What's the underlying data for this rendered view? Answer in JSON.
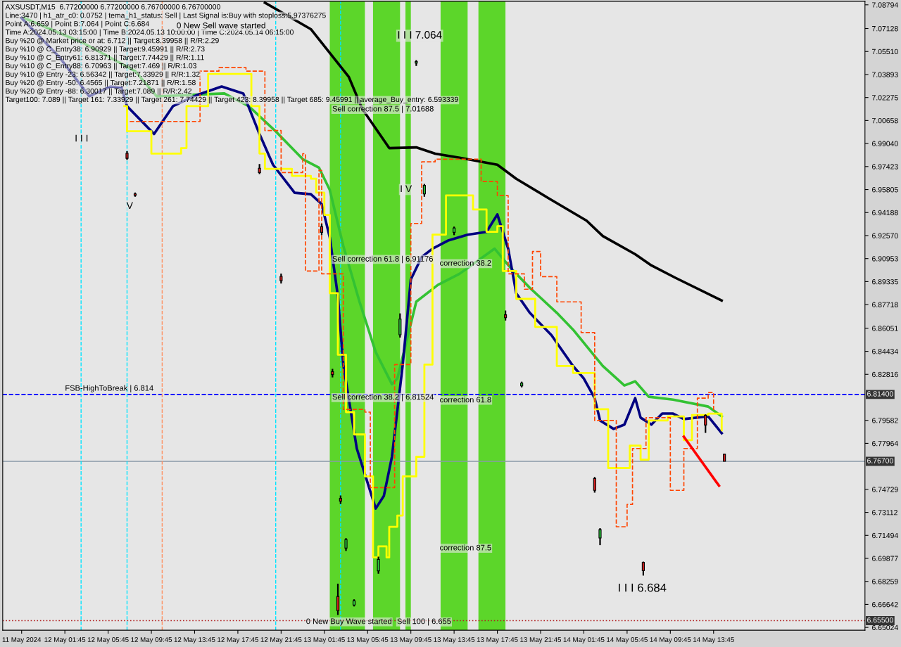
{
  "chart_data": {
    "type": "line",
    "title": "AXSUSDT,M15  6.77200000 6.77200000 6.76700000 6.76700000",
    "xlim": [
      "2024-05-11T20:00",
      "2024-05-15T03:45"
    ],
    "xticks": [
      {
        "value": "2024-05-11T21:45",
        "label": "11 May 2024"
      },
      {
        "value": "2024-05-12T01:45",
        "label": "12 May 01:45"
      },
      {
        "value": "2024-05-12T05:45",
        "label": "12 May 05:45"
      },
      {
        "value": "2024-05-12T09:45",
        "label": "12 May 09:45"
      },
      {
        "value": "2024-05-12T13:45",
        "label": "12 May 13:45"
      },
      {
        "value": "2024-05-12T17:45",
        "label": "12 May 17:45"
      },
      {
        "value": "2024-05-12T21:45",
        "label": "12 May 21:45"
      },
      {
        "value": "2024-05-13T01:45",
        "label": "13 May 01:45"
      },
      {
        "value": "2024-05-13T05:45",
        "label": "13 May 05:45"
      },
      {
        "value": "2024-05-13T09:45",
        "label": "13 May 09:45"
      },
      {
        "value": "2024-05-13T13:45",
        "label": "13 May 13:45"
      },
      {
        "value": "2024-05-13T17:45",
        "label": "13 May 17:45"
      },
      {
        "value": "2024-05-13T21:45",
        "label": "13 May 21:45"
      },
      {
        "value": "2024-05-14T01:45",
        "label": "14 May 01:45"
      },
      {
        "value": "2024-05-14T05:45",
        "label": "14 May 05:45"
      },
      {
        "value": "2024-05-14T09:45",
        "label": "14 May 09:45"
      },
      {
        "value": "2024-05-14T13:45",
        "label": "14 May 13:45"
      }
    ],
    "ylim": [
      6.6483,
      7.0904
    ],
    "yticks": [
      {
        "value": 7.08794,
        "label": "7.08794"
      },
      {
        "value": 7.07128,
        "label": "7.07128"
      },
      {
        "value": 7.0551,
        "label": "7.05510"
      },
      {
        "value": 7.03893,
        "label": "7.03893"
      },
      {
        "value": 7.02275,
        "label": "7.02275"
      },
      {
        "value": 7.00658,
        "label": "7.00658"
      },
      {
        "value": 6.9904,
        "label": "6.99040"
      },
      {
        "value": 6.97423,
        "label": "6.97423"
      },
      {
        "value": 6.95805,
        "label": "6.95805"
      },
      {
        "value": 6.94188,
        "label": "6.94188"
      },
      {
        "value": 6.9257,
        "label": "6.92570"
      },
      {
        "value": 6.90953,
        "label": "6.90953"
      },
      {
        "value": 6.89335,
        "label": "6.89335"
      },
      {
        "value": 6.87718,
        "label": "6.87718"
      },
      {
        "value": 6.86051,
        "label": "6.86051"
      },
      {
        "value": 6.84434,
        "label": "6.84434"
      },
      {
        "value": 6.82816,
        "label": "6.82816"
      },
      {
        "value": 6.79582,
        "label": "6.79582"
      },
      {
        "value": 6.77964,
        "label": "6.77964"
      },
      {
        "value": 6.74729,
        "label": "6.74729"
      },
      {
        "value": 6.73112,
        "label": "6.73112"
      },
      {
        "value": 6.71494,
        "label": "6.71494"
      },
      {
        "value": 6.69877,
        "label": "6.69877"
      },
      {
        "value": 6.68259,
        "label": "6.68259"
      },
      {
        "value": 6.66642,
        "label": "6.66642"
      },
      {
        "value": 6.65024,
        "label": "6.65024"
      }
    ],
    "grid": false,
    "legend": false,
    "series": [
      {
        "color": "#000000",
        "x": [
          "2024-05-12T20:15",
          "2024-05-13T00:30",
          "2024-05-13T04:00",
          "2024-05-13T05:15",
          "2024-05-13T07:45",
          "2024-05-13T10:15",
          "2024-05-13T12:00",
          "2024-05-13T14:15",
          "2024-05-13T17:45",
          "2024-05-13T19:30",
          "2024-05-13T22:30",
          "2024-05-14T02:00",
          "2024-05-14T03:30",
          "2024-05-14T06:30",
          "2024-05-14T08:00",
          "2024-05-14T10:15",
          "2024-05-14T14:30"
        ],
        "values": [
          7.0894,
          7.0708,
          7.0374,
          7.0148,
          6.9872,
          6.9877,
          6.9833,
          6.9804,
          6.9755,
          6.9656,
          6.9519,
          6.9362,
          6.9254,
          6.9126,
          6.9047,
          6.8959,
          6.8801
        ]
      },
      {
        "color": "#33c233",
        "x": [
          "2024-05-11T22:00",
          "2024-05-12T03:30",
          "2024-05-12T08:15",
          "2024-05-12T10:15",
          "2024-05-12T16:30",
          "2024-05-12T18:45",
          "2024-05-12T21:15",
          "2024-05-12T23:45",
          "2024-05-13T01:15",
          "2024-05-13T02:15",
          "2024-05-13T03:30",
          "2024-05-13T05:00",
          "2024-05-13T06:30",
          "2024-05-13T08:00",
          "2024-05-13T08:30",
          "2024-05-13T10:15",
          "2024-05-13T12:15",
          "2024-05-13T14:15",
          "2024-05-13T17:30",
          "2024-05-13T19:00",
          "2024-05-13T20:45",
          "2024-05-13T23:15",
          "2024-05-14T00:45",
          "2024-05-14T03:30",
          "2024-05-14T05:30",
          "2024-05-14T06:30",
          "2024-05-14T07:45",
          "2024-05-14T10:00",
          "2024-05-14T13:15",
          "2024-05-14T14:30"
        ],
        "values": [
          7.0786,
          7.0609,
          7.0413,
          7.0236,
          7.0256,
          7.0167,
          6.999,
          6.9794,
          6.9735,
          6.9578,
          6.9185,
          6.8792,
          6.8438,
          6.8212,
          6.8252,
          6.8792,
          6.891,
          6.8988,
          6.9165,
          6.9028,
          6.889,
          6.8714,
          6.8596,
          6.834,
          6.8203,
          6.8232,
          6.8124,
          6.8104,
          6.8055,
          6.7986
        ]
      },
      {
        "color": "#000080",
        "x": [
          "2024-05-11T21:45",
          "2024-05-12T01:15",
          "2024-05-12T04:00",
          "2024-05-12T06:00",
          "2024-05-12T07:00",
          "2024-05-12T07:30",
          "2024-05-12T10:00",
          "2024-05-12T11:45",
          "2024-05-12T14:00",
          "2024-05-12T16:15",
          "2024-05-12T18:15",
          "2024-05-12T19:45",
          "2024-05-12T21:00",
          "2024-05-12T23:00",
          "2024-05-13T00:30",
          "2024-05-13T01:30",
          "2024-05-13T02:15",
          "2024-05-13T03:00",
          "2024-05-13T03:30",
          "2024-05-13T04:45",
          "2024-05-13T06:30",
          "2024-05-13T07:15",
          "2024-05-13T08:00",
          "2024-05-13T09:00",
          "2024-05-13T09:45",
          "2024-05-13T10:45",
          "2024-05-13T11:45",
          "2024-05-13T13:15",
          "2024-05-13T15:00",
          "2024-05-13T16:45",
          "2024-05-13T17:45",
          "2024-05-13T18:45",
          "2024-05-13T19:30",
          "2024-05-13T20:45",
          "2024-05-13T22:45",
          "2024-05-14T00:45",
          "2024-05-14T01:45",
          "2024-05-14T02:45",
          "2024-05-14T03:15",
          "2024-05-14T04:30",
          "2024-05-14T05:30",
          "2024-05-14T06:30",
          "2024-05-14T07:00",
          "2024-05-14T08:00",
          "2024-05-14T09:00",
          "2024-05-14T10:00",
          "2024-05-14T11:00",
          "2024-05-14T13:15",
          "2024-05-14T14:30"
        ],
        "values": [
          7.0786,
          7.0511,
          7.0236,
          7.0305,
          7.0295,
          7.0167,
          6.9971,
          7.0167,
          7.0246,
          7.0305,
          7.0256,
          6.9971,
          6.9755,
          6.9558,
          6.9548,
          6.9479,
          6.9244,
          6.8831,
          6.835,
          6.776,
          6.7338,
          6.7426,
          6.7702,
          6.835,
          6.8949,
          6.9106,
          6.9165,
          6.9224,
          6.9263,
          6.9283,
          6.9406,
          6.9165,
          6.8851,
          6.8714,
          6.8557,
          6.834,
          6.8252,
          6.8114,
          6.7957,
          6.7898,
          6.7928,
          6.8114,
          6.7977,
          6.7928,
          6.8006,
          6.8006,
          6.7967,
          6.7986,
          6.7868
        ]
      },
      {
        "type": "step",
        "color": "#ffff00",
        "x": [
          "2024-05-12T07:15",
          "2024-05-12T07:30",
          "2024-05-12T09:45",
          "2024-05-12T12:30",
          "2024-05-12T13:00",
          "2024-05-12T15:00",
          "2024-05-12T19:00",
          "2024-05-12T19:45",
          "2024-05-12T20:15",
          "2024-05-12T22:45",
          "2024-05-13T00:30",
          "2024-05-13T01:00",
          "2024-05-13T01:45",
          "2024-05-13T02:15",
          "2024-05-13T03:00",
          "2024-05-13T03:45",
          "2024-05-13T04:30",
          "2024-05-13T05:30",
          "2024-05-13T06:15",
          "2024-05-13T06:45",
          "2024-05-13T07:30",
          "2024-05-13T07:45",
          "2024-05-13T08:30",
          "2024-05-13T09:00",
          "2024-05-13T10:15",
          "2024-05-13T11:00",
          "2024-05-13T11:45",
          "2024-05-13T13:00",
          "2024-05-13T15:30",
          "2024-05-13T16:45",
          "2024-05-13T17:45",
          "2024-05-13T18:15",
          "2024-05-13T19:30",
          "2024-05-13T21:15",
          "2024-05-13T23:15",
          "2024-05-14T00:45",
          "2024-05-14T02:45",
          "2024-05-14T04:00",
          "2024-05-14T05:00",
          "2024-05-14T06:00",
          "2024-05-14T07:00",
          "2024-05-14T07:45",
          "2024-05-14T09:30",
          "2024-05-14T11:00",
          "2024-05-14T11:45",
          "2024-05-14T13:15",
          "2024-05-14T14:30"
        ],
        "values": [
          7.0167,
          6.999,
          6.9833,
          6.9872,
          7.0167,
          7.0393,
          7.0167,
          6.9834,
          6.9726,
          6.9677,
          6.9657,
          6.9559,
          6.9402,
          6.8852,
          6.8419,
          6.8016,
          6.7859,
          6.7564,
          6.6994,
          6.7072,
          6.6994,
          6.721,
          6.7289,
          6.7564,
          6.7702,
          6.835,
          6.9264,
          6.9539,
          6.944,
          6.9283,
          6.9323,
          6.9008,
          6.8812,
          6.8615,
          6.834,
          6.8291,
          6.8036,
          6.7623,
          6.7623,
          6.778,
          6.7682,
          6.7957,
          6.7986,
          6.7819,
          6.7996,
          6.8006,
          6.7888
        ]
      },
      {
        "type": "step",
        "color": "#ff4500",
        "line_style": "dashed",
        "x": [
          "2024-05-12T07:45",
          "2024-05-12T13:00",
          "2024-05-12T14:15",
          "2024-05-12T16:00",
          "2024-05-12T17:15",
          "2024-05-12T18:30",
          "2024-05-12T20:15",
          "2024-05-12T21:45",
          "2024-05-12T23:45",
          "2024-05-13T00:00",
          "2024-05-13T01:15",
          "2024-05-13T01:30",
          "2024-05-13T03:30",
          "2024-05-13T05:30",
          "2024-05-13T06:00",
          "2024-05-13T07:30",
          "2024-05-13T08:15",
          "2024-05-13T09:45",
          "2024-05-13T10:45",
          "2024-05-13T12:00",
          "2024-05-13T14:30",
          "2024-05-13T16:15",
          "2024-05-13T17:45",
          "2024-05-13T18:45",
          "2024-05-13T20:15",
          "2024-05-13T21:00",
          "2024-05-13T21:45",
          "2024-05-13T23:15",
          "2024-05-14T01:30",
          "2024-05-14T02:45",
          "2024-05-14T04:00",
          "2024-05-14T04:45",
          "2024-05-14T05:45",
          "2024-05-14T06:15",
          "2024-05-14T07:30",
          "2024-05-14T09:45",
          "2024-05-14T11:00",
          "2024-05-14T12:15",
          "2024-05-14T13:15",
          "2024-05-14T13:45"
        ],
        "values": [
          7.0059,
          7.0059,
          7.0413,
          7.0438,
          7.0438,
          7.0413,
          6.9995,
          6.97,
          6.9833,
          6.9008,
          6.9715,
          6.8988,
          6.8035,
          6.8016,
          6.7485,
          6.7485,
          6.835,
          6.9342,
          6.9775,
          6.9794,
          6.9794,
          6.9637,
          6.9538,
          6.8988,
          6.888,
          6.9145,
          6.8968,
          6.8791,
          6.8575,
          6.7957,
          6.7957,
          6.721,
          6.7367,
          6.776,
          6.7977,
          6.7466,
          6.776,
          6.8114,
          6.8154,
          6.8016
        ]
      },
      {
        "color": "#ff0000",
        "x": [
          "2024-05-14T11:00",
          "2024-05-14T14:15"
        ],
        "values": [
          6.7843,
          6.7499
        ]
      },
      {
        "type": "candlestick",
        "color": "#000000",
        "x": [
          "2024-05-12T07:30",
          "2024-05-12T08:15",
          "2024-05-12T19:45",
          "2024-05-12T21:45",
          "2024-05-13T01:30",
          "2024-05-13T02:30",
          "2024-05-13T03:00",
          "2024-05-13T03:15",
          "2024-05-13T03:45",
          "2024-05-13T04:30",
          "2024-05-13T06:45",
          "2024-05-13T08:45",
          "2024-05-13T10:15",
          "2024-05-13T11:00",
          "2024-05-13T13:45",
          "2024-05-13T18:30",
          "2024-05-13T20:00",
          "2024-05-14T02:45",
          "2024-05-14T03:15",
          "2024-05-14T07:15",
          "2024-05-14T13:00",
          "2024-05-14T14:45"
        ],
        "ohlc": [
          [
            6.9835,
            6.985,
            6.979,
            6.98
          ],
          [
            6.955,
            6.956,
            6.953,
            6.954
          ],
          [
            6.973,
            6.976,
            6.969,
            6.97
          ],
          [
            6.897,
            6.899,
            6.892,
            6.894
          ],
          [
            6.932,
            6.934,
            6.926,
            6.928
          ],
          [
            6.83,
            6.832,
            6.826,
            6.828
          ],
          [
            6.672,
            6.681,
            6.659,
            6.662
          ],
          [
            6.741,
            6.743,
            6.737,
            6.739
          ],
          [
            6.706,
            6.713,
            6.704,
            6.712
          ],
          [
            6.666,
            6.67,
            6.665,
            6.669
          ],
          [
            6.69,
            6.7,
            6.688,
            6.698
          ],
          [
            6.856,
            6.871,
            6.854,
            6.867
          ],
          [
            7.047,
            7.049,
            7.045,
            7.048
          ],
          [
            6.955,
            6.962,
            6.953,
            6.961
          ],
          [
            6.928,
            6.932,
            6.926,
            6.931
          ],
          [
            6.87,
            6.873,
            6.866,
            6.868
          ],
          [
            6.82,
            6.823,
            6.819,
            6.822
          ],
          [
            6.7549,
            6.756,
            6.745,
            6.7466
          ],
          [
            6.7131,
            6.72,
            6.7081,
            6.719
          ],
          [
            6.696,
            6.6965,
            6.6867,
            6.6901
          ],
          [
            6.7993,
            6.8,
            6.787,
            6.7925
          ],
          [
            6.772,
            6.772,
            6.767,
            6.767
          ]
        ]
      }
    ],
    "ref_lines": [
      {
        "axis": "y",
        "value": 6.814,
        "label": "FSB-HighToBreak | 6.814",
        "color": "#0000ff",
        "line_style": "dashed"
      },
      {
        "axis": "y",
        "value": 6.767,
        "color": "#8a9aa8",
        "line_style": "solid"
      },
      {
        "axis": "y",
        "value": 6.655,
        "color": "#b22222",
        "line_style": "dotted"
      },
      {
        "axis": "x",
        "value": "2024-05-12T03:15",
        "color": "#00e5ff",
        "line_style": "dashed"
      },
      {
        "axis": "x",
        "value": "2024-05-12T07:30",
        "color": "#00e5ff",
        "line_style": "dashed"
      },
      {
        "axis": "x",
        "value": "2024-05-12T10:45",
        "color": "#ff9060",
        "line_style": "dashed"
      },
      {
        "axis": "x",
        "value": "2024-05-12T21:15",
        "color": "#00e5ff",
        "line_style": "dashed"
      },
      {
        "axis": "x",
        "value": "2024-05-13T03:15",
        "color": "#00e5ff",
        "line_style": "dashed"
      }
    ],
    "bands": [
      {
        "axis": "x",
        "from": "2024-05-13T02:15",
        "to": "2024-05-13T05:30",
        "color": "#5cd62a"
      },
      {
        "axis": "x",
        "from": "2024-05-13T06:15",
        "to": "2024-05-13T08:45",
        "color": "#5cd62a"
      },
      {
        "axis": "x",
        "from": "2024-05-13T09:15",
        "to": "2024-05-13T09:45",
        "color": "#5cd62a"
      },
      {
        "axis": "x",
        "from": "2024-05-13T12:30",
        "to": "2024-05-13T15:00",
        "color": "#5cd62a"
      },
      {
        "axis": "x",
        "from": "2024-05-13T16:00",
        "to": "2024-05-13T18:30",
        "color": "#5cd62a"
      }
    ],
    "annotations": [
      "Line:3470 | h1_atr_c0: 0.0752 | tema_h1_status: Sell | Last Signal is:Buy with stoploss:5.97376275",
      "Point A:6.659 | Point B:7.064 | Point C:6.684",
      "Time A:2024.05.13 03:15:00 | Time B:2024.05.13 10:00:00 | Time C:2024.05.14 06:15:00",
      "Buy %20 @ Market price or at: 6.712 || Target:8.39958 || R/R:2.29",
      "Buy %10 @ C_Entry38: 6.90929 || Target:9.45991 || R/R:2.73",
      "Buy %10 @ C_Entry61: 6.81371 || Target:7.74429 || R/R:1.11",
      "Buy %10 @ C_Entry88: 6.70963 || Target:7.469 || R/R:1.03",
      "Buy %10 @ Entry -23: 6.56342 || Target:7.33929 || R/R:1.32",
      "Buy %20 @ Entry -50: 6.4565 || Target:7.21871 || R/R:1.58",
      "Buy %20 @ Entry -88: 6.30017 || Target:7.089 || R/R:2.42",
      "Target100: 7.089 || Target 161: 7.33929 || Target 261: 7.74429 || Target 423: 8.39958 || Target 685: 9.45991 || average_Buy_entry: 6.593339",
      "0 New Sell wave started",
      "I I I 7.064",
      "I V",
      "V",
      "I I I",
      "I I I 6.684",
      "Sell correction 87.5 | 7.01688",
      "Sell correction 61.8 | 6.91176",
      "Sell correction 38.2 | 6.81524",
      "Sell 100 | 6.655",
      "0 New Buy Wave started",
      "correction 38.2",
      "correction 61.8",
      "correction 87.5",
      {
        "text": "6.81400",
        "y": 6.814
      },
      {
        "text": "6.76700",
        "y": 6.767
      },
      {
        "text": "6.65500",
        "y": 6.655
      }
    ]
  }
}
